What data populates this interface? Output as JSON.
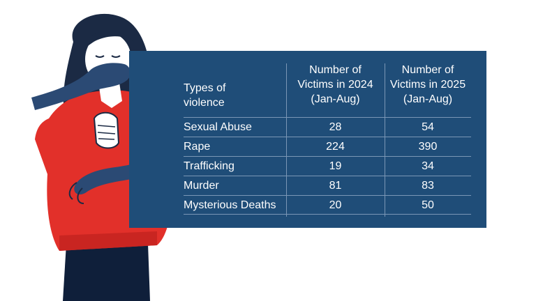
{
  "colors": {
    "panel": "#1f4d78",
    "rule": "#7b97b6",
    "sweater": "#e2302a",
    "hair": "#1b2a44",
    "hand": "#2b4a74",
    "skin": "#ffffff"
  },
  "illustration": {
    "icon": "woman-victim-illustration"
  },
  "chart_data": {
    "type": "table",
    "header": {
      "col1": [
        "Types of",
        "violence"
      ],
      "col2": [
        "Number of",
        "Victims in 2024",
        "(Jan-Aug)"
      ],
      "col3": [
        "Number of",
        "Victims in 2025",
        "(Jan-Aug)"
      ]
    },
    "rows": [
      {
        "type": "Sexual Abuse",
        "v2024": 28,
        "v2025": 54
      },
      {
        "type": "Rape",
        "v2024": 224,
        "v2025": 390
      },
      {
        "type": "Trafficking",
        "v2024": 19,
        "v2025": 34
      },
      {
        "type": "Murder",
        "v2024": 81,
        "v2025": 83
      },
      {
        "type": "Mysterious Deaths",
        "v2024": 20,
        "v2025": 50
      }
    ]
  }
}
